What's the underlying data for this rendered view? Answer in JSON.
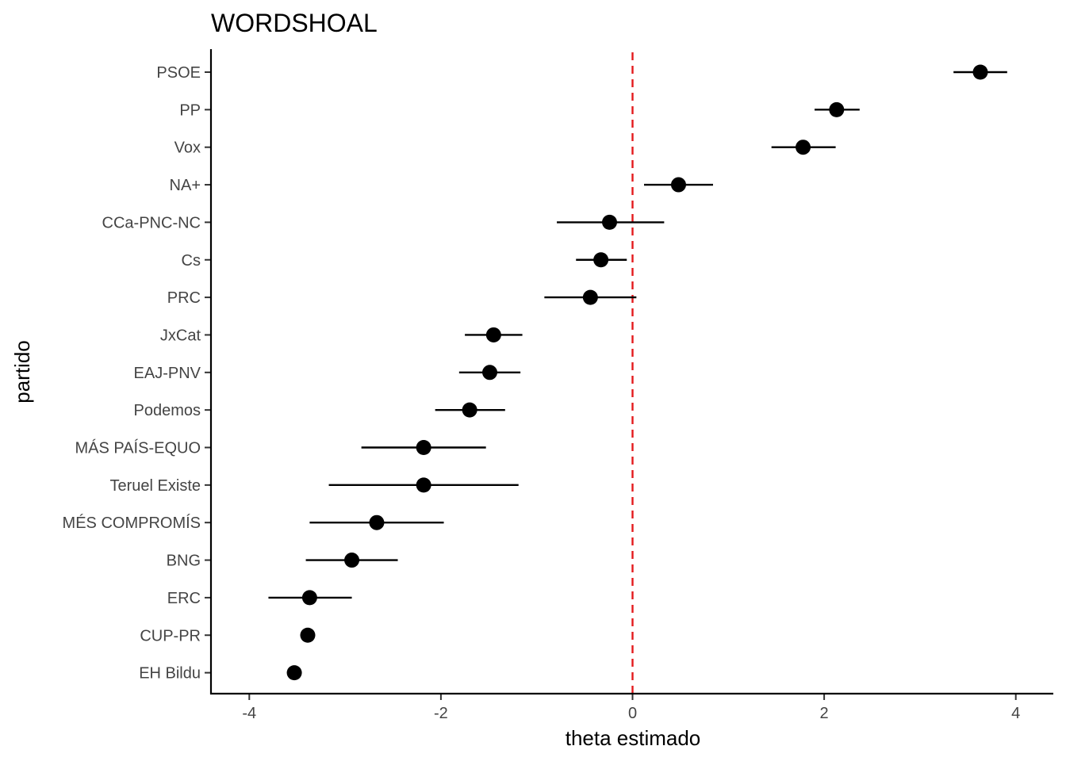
{
  "chart_data": {
    "type": "scatter",
    "title": "WORDSHOAL",
    "xlabel": "theta estimado",
    "ylabel": "partido",
    "xlim": [
      -4.4,
      4.4
    ],
    "x_ticks": [
      -4,
      -2,
      0,
      2,
      4
    ],
    "x_tick_labels": [
      "-4",
      "-2",
      "0",
      "2",
      "4"
    ],
    "reference_line": {
      "x": 0,
      "color": "#e31a1c",
      "style": "dashed"
    },
    "grid": false,
    "point_color": "#000000",
    "series": [
      {
        "categories": [
          "PSOE",
          "PP",
          "Vox",
          "NA+",
          "CCa-PNC-NC",
          "Cs",
          "PRC",
          "JxCat",
          "EAJ-PNV",
          "Podemos",
          "MÁS PAÍS-EQUO",
          "Teruel Existe",
          "MÉS COMPROMÍS",
          "BNG",
          "ERC",
          "CUP-PR",
          "EH Bildu"
        ],
        "values": [
          3.63,
          2.13,
          1.78,
          0.48,
          -0.24,
          -0.33,
          -0.44,
          -1.45,
          -1.49,
          -1.7,
          -2.18,
          -2.18,
          -2.67,
          -2.93,
          -3.37,
          -3.39,
          -3.53
        ],
        "lower": [
          3.35,
          1.9,
          1.45,
          0.12,
          -0.79,
          -0.59,
          -0.92,
          -1.75,
          -1.81,
          -2.06,
          -2.83,
          -3.17,
          -3.37,
          -3.41,
          -3.8,
          -3.39,
          -3.53
        ],
        "upper": [
          3.91,
          2.37,
          2.12,
          0.84,
          0.33,
          -0.06,
          0.04,
          -1.15,
          -1.17,
          -1.33,
          -1.53,
          -1.19,
          -1.97,
          -2.45,
          -2.93,
          -3.39,
          -3.53
        ]
      }
    ]
  }
}
